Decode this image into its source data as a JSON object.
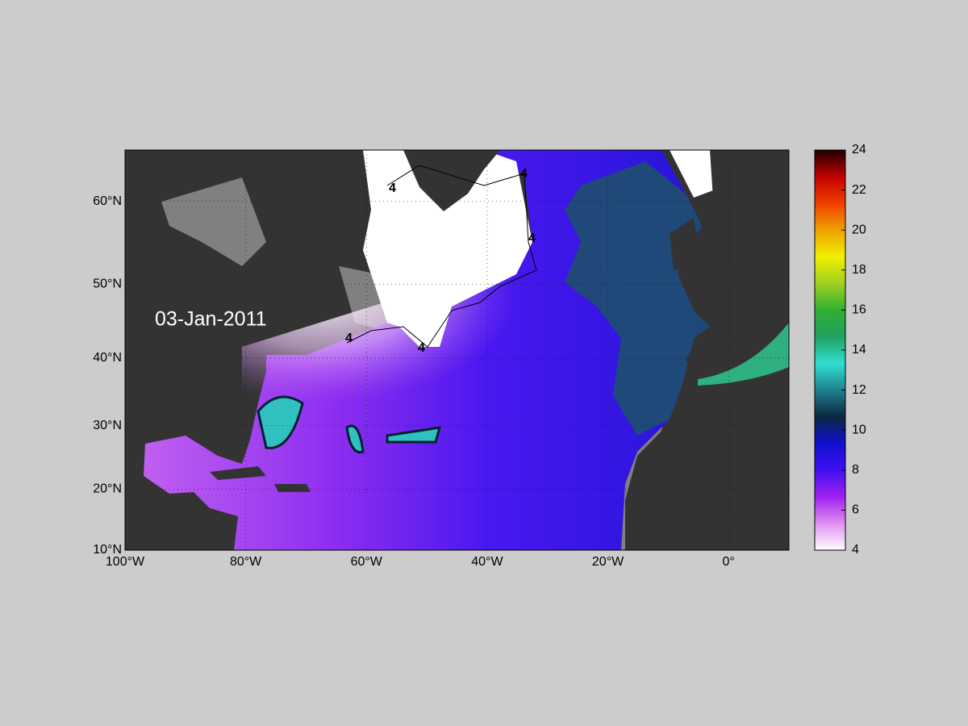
{
  "map": {
    "date_label": "03-Jan-2011",
    "lonlim": [
      -100,
      10
    ],
    "latlim": [
      10,
      65.5
    ],
    "lon_ticks": [
      {
        "value": -100,
        "label": "100°W"
      },
      {
        "value": -80,
        "label": "80°W"
      },
      {
        "value": -60,
        "label": "60°W"
      },
      {
        "value": -40,
        "label": "40°W"
      },
      {
        "value": -20,
        "label": "20°W"
      },
      {
        "value": 0,
        "label": "0°"
      }
    ],
    "lat_ticks": [
      {
        "value": 10,
        "label": "10°N"
      },
      {
        "value": 20,
        "label": "20°N"
      },
      {
        "value": 30,
        "label": "30°N"
      },
      {
        "value": 40,
        "label": "40°N"
      },
      {
        "value": 50,
        "label": "50°N"
      },
      {
        "value": 60,
        "label": "60°N"
      }
    ],
    "grid": true,
    "contour_level": 4,
    "colorbar": {
      "clim": [
        4,
        24
      ],
      "ticks": [
        4,
        6,
        8,
        10,
        12,
        14,
        16,
        18,
        20,
        22,
        24
      ],
      "colormap": [
        "#ffffff",
        "#e090f0",
        "#a020f0",
        "#4010f0",
        "#1010d0",
        "#0a2840",
        "#208090",
        "#30e0d0",
        "#20a060",
        "#30b030",
        "#a0d020",
        "#f0f000",
        "#f0a000",
        "#f04000",
        "#c00000",
        "#200000"
      ]
    }
  }
}
